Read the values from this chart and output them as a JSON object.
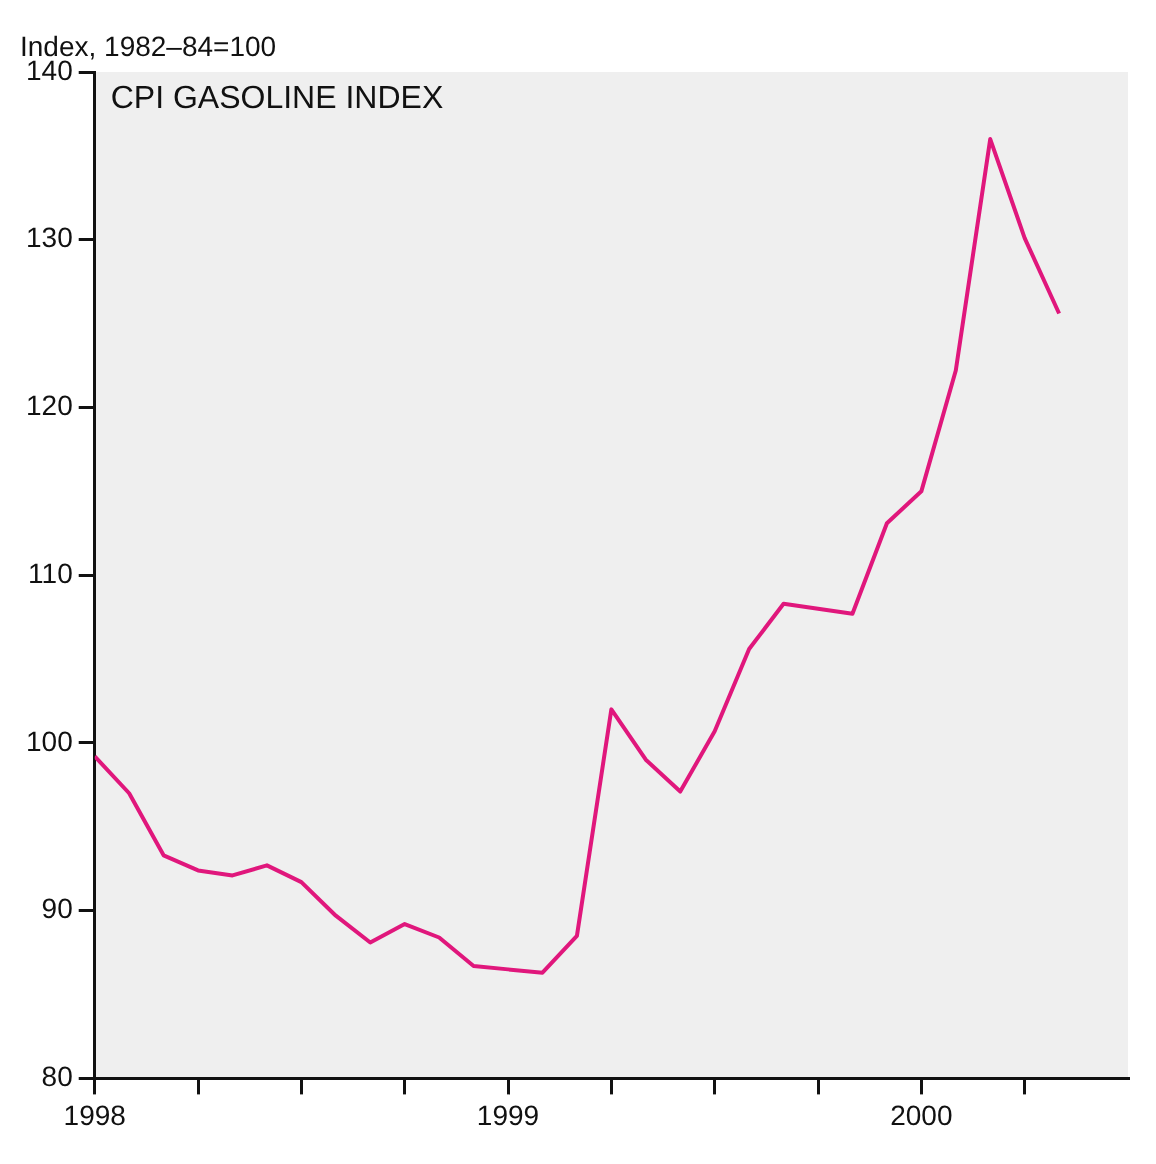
{
  "chart_data": {
    "type": "line",
    "title": "CPI GASOLINE INDEX",
    "ylabel": "Index, 1982–84=100",
    "x": [
      "1998-01",
      "1998-02",
      "1998-03",
      "1998-04",
      "1998-05",
      "1998-06",
      "1998-07",
      "1998-08",
      "1998-09",
      "1998-10",
      "1998-11",
      "1998-12",
      "1999-01",
      "1999-02",
      "1999-03",
      "1999-04",
      "1999-05",
      "1999-06",
      "1999-07",
      "1999-08",
      "1999-09",
      "1999-10",
      "1999-11",
      "1999-12",
      "2000-01",
      "2000-02",
      "2000-03",
      "2000-04",
      "2000-05"
    ],
    "series": [
      {
        "color": "#e0177c",
        "values": [
          99.2,
          97.0,
          93.3,
          92.4,
          92.1,
          92.7,
          91.7,
          89.7,
          88.1,
          89.2,
          88.4,
          86.7,
          86.5,
          86.3,
          88.5,
          102.0,
          99.0,
          97.1,
          100.7,
          105.6,
          108.3,
          108.0,
          107.7,
          113.1,
          115.0,
          122.2,
          136.0,
          130.1,
          125.6
        ]
      }
    ],
    "xlim": [
      "1998-01",
      "2000-07"
    ],
    "xticks": [
      "1998",
      {
        "value": "1998-04",
        "label": null
      },
      {
        "value": "1998-07",
        "label": null
      },
      {
        "value": "1998-10",
        "label": null
      },
      "1999",
      {
        "value": "1999-04",
        "label": null
      },
      {
        "value": "1999-07",
        "label": null
      },
      {
        "value": "1999-10",
        "label": null
      },
      "2000",
      {
        "value": "2000-04",
        "label": null
      }
    ],
    "ylim": [
      80,
      140
    ],
    "yticks": [
      80,
      90,
      100,
      110,
      120,
      130,
      140
    ],
    "grid": false,
    "legend": false,
    "marker": "none",
    "line_style": "solid"
  }
}
